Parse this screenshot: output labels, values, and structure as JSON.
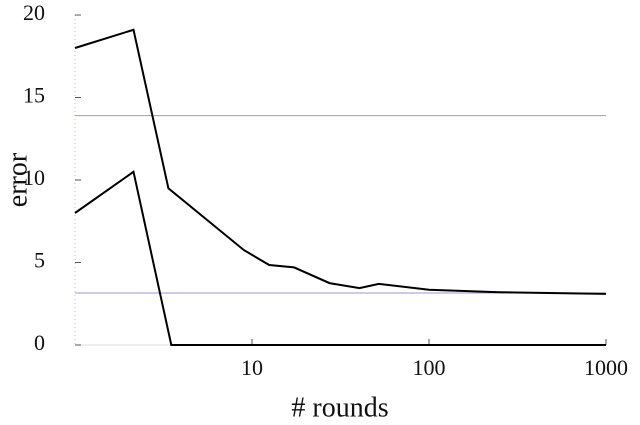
{
  "chart_data": {
    "type": "line",
    "xlabel": "# rounds",
    "ylabel": "error",
    "xscale": "log",
    "xlim": [
      1,
      1000
    ],
    "xticks": [
      10,
      100,
      1000
    ],
    "ylim": [
      0,
      20
    ],
    "yticks": [
      0,
      5,
      10,
      15,
      20
    ],
    "hlines": [
      13.9,
      3.15
    ],
    "hline_color": "#9a9ad6",
    "series": [
      {
        "color": "#000000",
        "x": [
          1,
          2.14,
          3.37,
          9,
          12.5,
          17.3,
          27.4,
          40.5,
          52,
          100,
          250,
          1000
        ],
        "values": [
          18,
          19.1,
          9.5,
          5.75,
          4.85,
          4.7,
          3.75,
          3.45,
          3.7,
          3.35,
          3.2,
          3.1
        ]
      },
      {
        "color": "#000000",
        "x": [
          1,
          2.14,
          3.5,
          1000
        ],
        "values": [
          8,
          10.5,
          0,
          0
        ]
      }
    ]
  }
}
